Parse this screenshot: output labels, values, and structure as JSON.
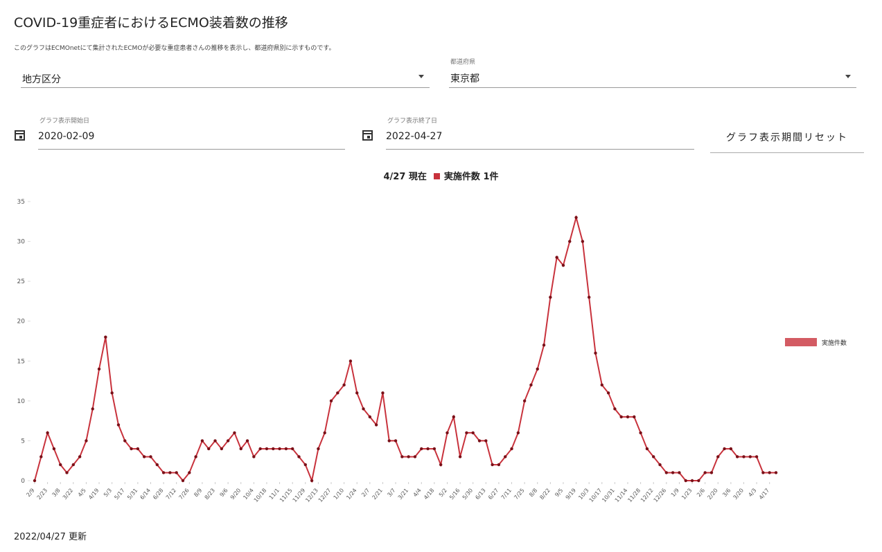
{
  "title": "COVID-19重症者におけるECMO装着数の推移",
  "description": "このグラフはECMOnetにて集計されたECMOが必要な重症患者さんの推移を表示し、都道府県別に示すものです。",
  "filters": {
    "region": {
      "value": "地方区分"
    },
    "prefecture": {
      "label": "都道府県",
      "value": "東京都"
    },
    "start_date": {
      "label": "グラフ表示開始日",
      "value": "2020-02-09"
    },
    "end_date": {
      "label": "グラフ表示終了日",
      "value": "2022-04-27"
    },
    "reset_button": "グラフ表示期間リセット"
  },
  "chart_data": {
    "type": "line",
    "summary": {
      "date": "4/27 現在",
      "text": "実施件数 1件"
    },
    "categories": [
      "2/9",
      null,
      "2/23",
      null,
      "3/8",
      null,
      "3/22",
      null,
      "4/5",
      null,
      "4/19",
      null,
      "5/3",
      null,
      "5/17",
      null,
      "5/31",
      null,
      "6/14",
      null,
      "6/28",
      null,
      "7/12",
      null,
      "7/26",
      null,
      "8/9",
      null,
      "8/23",
      null,
      "9/6",
      null,
      "9/20",
      null,
      "10/4",
      null,
      "10/18",
      null,
      "11/1",
      null,
      "11/15",
      null,
      "11/29",
      null,
      "12/13",
      null,
      "12/27",
      null,
      "1/10",
      null,
      "1/24",
      null,
      "2/7",
      null,
      "2/21",
      null,
      "3/7",
      null,
      "3/21",
      null,
      "4/4",
      null,
      "4/18",
      null,
      "5/2",
      null,
      "5/16",
      null,
      "5/30",
      null,
      "6/13",
      null,
      "6/27",
      null,
      "7/11",
      null,
      "7/25",
      null,
      "8/8",
      null,
      "8/22",
      null,
      "9/5",
      null,
      "9/19",
      null,
      "10/3",
      null,
      "10/17",
      null,
      "10/31",
      null,
      "11/14",
      null,
      "11/28",
      null,
      "12/12",
      null,
      "12/26",
      null,
      "1/9",
      null,
      "1/23",
      null,
      "2/6",
      null,
      "2/20",
      null,
      "3/6",
      null,
      "3/20",
      null,
      "4/3",
      null,
      "4/17",
      null
    ],
    "series": [
      {
        "name": "実施件数",
        "color": "#c8323c",
        "values": [
          0,
          3,
          6,
          4,
          2,
          1,
          2,
          3,
          5,
          9,
          14,
          18,
          11,
          7,
          5,
          4,
          4,
          3,
          3,
          2,
          1,
          1,
          1,
          0,
          1,
          3,
          5,
          4,
          5,
          4,
          5,
          6,
          4,
          5,
          3,
          4,
          4,
          4,
          4,
          4,
          4,
          3,
          2,
          0,
          4,
          6,
          10,
          11,
          12,
          15,
          11,
          9,
          8,
          7,
          11,
          5,
          5,
          3,
          3,
          3,
          4,
          4,
          4,
          2,
          6,
          8,
          3,
          6,
          6,
          5,
          5,
          2,
          2,
          3,
          4,
          6,
          10,
          12,
          14,
          17,
          23,
          28,
          27,
          30,
          33,
          30,
          23,
          16,
          12,
          11,
          9,
          8,
          8,
          8,
          6,
          4,
          3,
          2,
          1,
          1,
          1,
          0,
          0,
          0,
          1,
          1,
          3,
          4,
          4,
          3,
          3,
          3,
          3,
          1,
          1,
          1
        ]
      }
    ],
    "ylim": [
      0,
      35
    ],
    "yticks": [
      0,
      5,
      10,
      15,
      20,
      25,
      30,
      35
    ]
  },
  "footer": "2022/04/27 更新"
}
